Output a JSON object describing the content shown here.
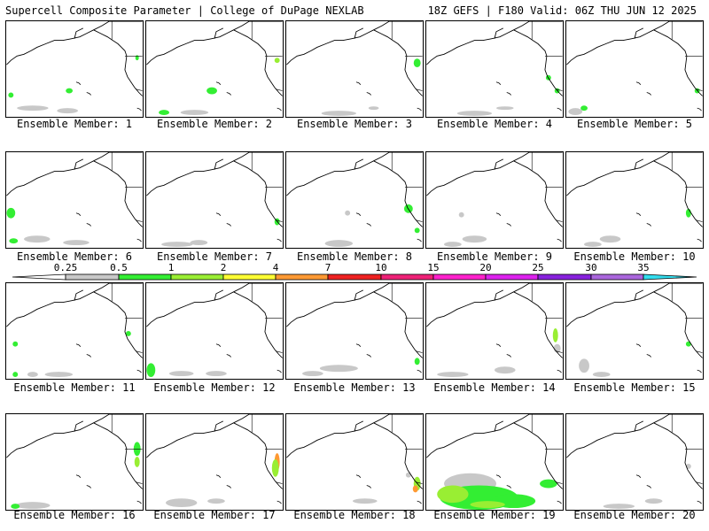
{
  "header": {
    "title_left": "Supercell Composite Parameter | College of DuPage NEXLAB",
    "title_right": "18Z GEFS | F180 Valid: 06Z THU JUN 12 2025"
  },
  "members": [
    {
      "label": "Ensemble Member: 1"
    },
    {
      "label": "Ensemble Member: 2"
    },
    {
      "label": "Ensemble Member: 3"
    },
    {
      "label": "Ensemble Member: 4"
    },
    {
      "label": "Ensemble Member: 5"
    },
    {
      "label": "Ensemble Member: 6"
    },
    {
      "label": "Ensemble Member: 7"
    },
    {
      "label": "Ensemble Member: 8"
    },
    {
      "label": "Ensemble Member: 9"
    },
    {
      "label": "Ensemble Member: 10"
    },
    {
      "label": "Ensemble Member: 11"
    },
    {
      "label": "Ensemble Member: 12"
    },
    {
      "label": "Ensemble Member: 13"
    },
    {
      "label": "Ensemble Member: 14"
    },
    {
      "label": "Ensemble Member: 15"
    },
    {
      "label": "Ensemble Member: 16"
    },
    {
      "label": "Ensemble Member: 17"
    },
    {
      "label": "Ensemble Member: 18"
    },
    {
      "label": "Ensemble Member: 19"
    },
    {
      "label": "Ensemble Member: 20"
    }
  ],
  "colorbar": {
    "ticks": [
      "0.25",
      "0.5",
      "1",
      "2",
      "4",
      "7",
      "10",
      "15",
      "20",
      "25",
      "30",
      "35"
    ],
    "colors": [
      "#ffffff",
      "#c8c8c8",
      "#33ee33",
      "#99ee33",
      "#ffff33",
      "#ff9933",
      "#ee2222",
      "#ee2277",
      "#ff22cc",
      "#dd22ee",
      "#8822dd",
      "#aa66dd",
      "#33ddee"
    ]
  }
}
